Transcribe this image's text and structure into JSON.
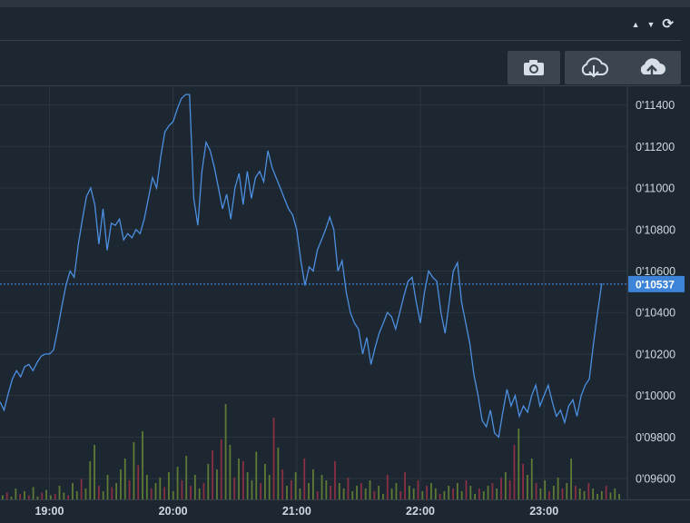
{
  "header": {
    "controls": [
      {
        "name": "collapse-up-icon",
        "glyph": "▲"
      },
      {
        "name": "collapse-down-icon",
        "glyph": "▼"
      },
      {
        "name": "refresh-icon",
        "glyph": "⟳"
      }
    ]
  },
  "toolbar": {
    "buttons": [
      {
        "name": "snapshot-camera-icon"
      },
      {
        "name": "cloud-download-icon"
      },
      {
        "name": "cloud-upload-icon"
      }
    ]
  },
  "colors": {
    "background": "#1c2731",
    "grid": "#2b3640",
    "line": "#4d8fe0",
    "last_price": "#3d84d8",
    "vol_up": "#5f7a35",
    "vol_down": "#8a3043",
    "axis_text": "#cfd8e0"
  },
  "chart_data": {
    "type": "line",
    "title": "",
    "xlabel": "",
    "ylabel": "",
    "x_ticks": [
      "19:00",
      "20:00",
      "21:00",
      "22:00",
      "23:00"
    ],
    "y_ticks": [
      "0'09600",
      "0'09800",
      "0'10000",
      "0'10200",
      "0'10400",
      "0'10600",
      "0'10800",
      "0'11000",
      "0'11200",
      "0'11400"
    ],
    "y_tick_values": [
      0.096,
      0.098,
      0.1,
      0.102,
      0.104,
      0.106,
      0.108,
      0.11,
      0.112,
      0.114
    ],
    "ylim": [
      0.095,
      0.1149
    ],
    "xlim": [
      "18:36",
      "23:40"
    ],
    "last_value_label": "0'10537",
    "last_value": 0.10537,
    "grid": true,
    "series": [
      {
        "values": [
          [
            "18:36",
            0.0997
          ],
          [
            "18:38",
            0.0993
          ],
          [
            "18:40",
            0.1001
          ],
          [
            "18:42",
            0.1008
          ],
          [
            "18:44",
            0.1012
          ],
          [
            "18:46",
            0.1009
          ],
          [
            "18:48",
            0.1014
          ],
          [
            "18:50",
            0.1015
          ],
          [
            "18:52",
            0.1012
          ],
          [
            "18:54",
            0.1016
          ],
          [
            "18:56",
            0.1019
          ],
          [
            "18:58",
            0.102
          ],
          [
            "19:00",
            0.102
          ],
          [
            "19:02",
            0.1022
          ],
          [
            "19:04",
            0.1032
          ],
          [
            "19:06",
            0.1043
          ],
          [
            "19:08",
            0.1053
          ],
          [
            "19:10",
            0.106
          ],
          [
            "19:12",
            0.1057
          ],
          [
            "19:14",
            0.1073
          ],
          [
            "19:16",
            0.1085
          ],
          [
            "19:18",
            0.1096
          ],
          [
            "19:20",
            0.11
          ],
          [
            "19:22",
            0.1092
          ],
          [
            "19:24",
            0.1073
          ],
          [
            "19:26",
            0.109
          ],
          [
            "19:28",
            0.107
          ],
          [
            "19:30",
            0.1083
          ],
          [
            "19:32",
            0.1082
          ],
          [
            "19:34",
            0.1085
          ],
          [
            "19:36",
            0.1075
          ],
          [
            "19:38",
            0.1078
          ],
          [
            "19:40",
            0.1076
          ],
          [
            "19:42",
            0.108
          ],
          [
            "19:44",
            0.1078
          ],
          [
            "19:46",
            0.1085
          ],
          [
            "19:48",
            0.1095
          ],
          [
            "19:50",
            0.1105
          ],
          [
            "19:52",
            0.11
          ],
          [
            "19:54",
            0.1115
          ],
          [
            "19:56",
            0.1127
          ],
          [
            "19:58",
            0.113
          ],
          [
            "20:00",
            0.1132
          ],
          [
            "20:02",
            0.1138
          ],
          [
            "20:04",
            0.1143
          ],
          [
            "20:06",
            0.1145
          ],
          [
            "20:08",
            0.1145
          ],
          [
            "20:10",
            0.1095
          ],
          [
            "20:12",
            0.1082
          ],
          [
            "20:14",
            0.1108
          ],
          [
            "20:16",
            0.1122
          ],
          [
            "20:18",
            0.1118
          ],
          [
            "20:20",
            0.111
          ],
          [
            "20:22",
            0.11
          ],
          [
            "20:24",
            0.109
          ],
          [
            "20:26",
            0.1097
          ],
          [
            "20:28",
            0.1085
          ],
          [
            "20:30",
            0.11
          ],
          [
            "20:32",
            0.1107
          ],
          [
            "20:34",
            0.1092
          ],
          [
            "20:36",
            0.1108
          ],
          [
            "20:38",
            0.1095
          ],
          [
            "20:40",
            0.1105
          ],
          [
            "20:42",
            0.1108
          ],
          [
            "20:44",
            0.1103
          ],
          [
            "20:46",
            0.1118
          ],
          [
            "20:48",
            0.111
          ],
          [
            "20:50",
            0.1105
          ],
          [
            "20:52",
            0.11
          ],
          [
            "20:54",
            0.1095
          ],
          [
            "20:56",
            0.109
          ],
          [
            "20:58",
            0.1087
          ],
          [
            "21:00",
            0.108
          ],
          [
            "21:02",
            0.1065
          ],
          [
            "21:04",
            0.1053
          ],
          [
            "21:06",
            0.1062
          ],
          [
            "21:08",
            0.106
          ],
          [
            "21:10",
            0.107
          ],
          [
            "21:12",
            0.1075
          ],
          [
            "21:14",
            0.108
          ],
          [
            "21:16",
            0.1086
          ],
          [
            "21:18",
            0.108
          ],
          [
            "21:20",
            0.106
          ],
          [
            "21:22",
            0.1065
          ],
          [
            "21:24",
            0.105
          ],
          [
            "21:26",
            0.104
          ],
          [
            "21:28",
            0.1035
          ],
          [
            "21:30",
            0.1032
          ],
          [
            "21:32",
            0.102
          ],
          [
            "21:34",
            0.1028
          ],
          [
            "21:36",
            0.1015
          ],
          [
            "21:38",
            0.1023
          ],
          [
            "21:40",
            0.103
          ],
          [
            "21:42",
            0.1035
          ],
          [
            "21:44",
            0.104
          ],
          [
            "21:46",
            0.1038
          ],
          [
            "21:48",
            0.1032
          ],
          [
            "21:50",
            0.104
          ],
          [
            "21:52",
            0.1048
          ],
          [
            "21:54",
            0.1055
          ],
          [
            "21:56",
            0.1057
          ],
          [
            "21:58",
            0.1045
          ],
          [
            "22:00",
            0.1035
          ],
          [
            "22:02",
            0.105
          ],
          [
            "22:04",
            0.106
          ],
          [
            "22:06",
            0.1057
          ],
          [
            "22:08",
            0.1055
          ],
          [
            "22:10",
            0.104
          ],
          [
            "22:12",
            0.103
          ],
          [
            "22:14",
            0.1045
          ],
          [
            "22:16",
            0.106
          ],
          [
            "22:18",
            0.1064
          ],
          [
            "22:20",
            0.1045
          ],
          [
            "22:22",
            0.1035
          ],
          [
            "22:24",
            0.1025
          ],
          [
            "22:26",
            0.101
          ],
          [
            "22:28",
            0.1
          ],
          [
            "22:30",
            0.0988
          ],
          [
            "22:32",
            0.0985
          ],
          [
            "22:34",
            0.0993
          ],
          [
            "22:36",
            0.0982
          ],
          [
            "22:38",
            0.098
          ],
          [
            "22:40",
            0.0992
          ],
          [
            "22:42",
            0.1003
          ],
          [
            "22:44",
            0.0995
          ],
          [
            "22:46",
            0.1
          ],
          [
            "22:48",
            0.099
          ],
          [
            "22:50",
            0.0995
          ],
          [
            "22:52",
            0.0992
          ],
          [
            "22:54",
            0.1
          ],
          [
            "22:56",
            0.1005
          ],
          [
            "22:58",
            0.0995
          ],
          [
            "23:00",
            0.1
          ],
          [
            "23:02",
            0.1005
          ],
          [
            "23:04",
            0.0997
          ],
          [
            "23:06",
            0.099
          ],
          [
            "23:08",
            0.0993
          ],
          [
            "23:10",
            0.0987
          ],
          [
            "23:12",
            0.0995
          ],
          [
            "23:14",
            0.0998
          ],
          [
            "23:16",
            0.099
          ],
          [
            "23:18",
            0.1
          ],
          [
            "23:20",
            0.1005
          ],
          [
            "23:22",
            0.1008
          ],
          [
            "23:24",
            0.1025
          ],
          [
            "23:26",
            0.104
          ],
          [
            "23:28",
            0.1054
          ]
        ]
      }
    ],
    "volume_unit_note": "",
    "volume": [
      [
        3,
        1
      ],
      [
        5,
        0
      ],
      [
        2,
        1
      ],
      [
        8,
        1
      ],
      [
        4,
        0
      ],
      [
        6,
        1
      ],
      [
        3,
        0
      ],
      [
        9,
        1
      ],
      [
        2,
        1
      ],
      [
        5,
        0
      ],
      [
        7,
        1
      ],
      [
        3,
        1
      ],
      [
        4,
        0
      ],
      [
        10,
        1
      ],
      [
        5,
        1
      ],
      [
        3,
        0
      ],
      [
        12,
        1
      ],
      [
        6,
        1
      ],
      [
        15,
        0
      ],
      [
        8,
        1
      ],
      [
        28,
        1
      ],
      [
        40,
        1
      ],
      [
        10,
        0
      ],
      [
        6,
        1
      ],
      [
        18,
        1
      ],
      [
        9,
        0
      ],
      [
        12,
        1
      ],
      [
        22,
        1
      ],
      [
        30,
        1
      ],
      [
        14,
        0
      ],
      [
        42,
        1
      ],
      [
        25,
        0
      ],
      [
        50,
        1
      ],
      [
        18,
        1
      ],
      [
        8,
        0
      ],
      [
        12,
        1
      ],
      [
        16,
        1
      ],
      [
        9,
        0
      ],
      [
        20,
        1
      ],
      [
        6,
        1
      ],
      [
        24,
        1
      ],
      [
        14,
        0
      ],
      [
        32,
        1
      ],
      [
        10,
        0
      ],
      [
        18,
        1
      ],
      [
        8,
        1
      ],
      [
        12,
        0
      ],
      [
        26,
        1
      ],
      [
        36,
        0
      ],
      [
        22,
        1
      ],
      [
        44,
        0
      ],
      [
        70,
        1
      ],
      [
        40,
        1
      ],
      [
        16,
        0
      ],
      [
        30,
        1
      ],
      [
        28,
        0
      ],
      [
        20,
        1
      ],
      [
        14,
        1
      ],
      [
        35,
        1
      ],
      [
        12,
        0
      ],
      [
        26,
        1
      ],
      [
        18,
        1
      ],
      [
        60,
        0
      ],
      [
        38,
        1
      ],
      [
        22,
        0
      ],
      [
        10,
        1
      ],
      [
        14,
        0
      ],
      [
        20,
        1
      ],
      [
        8,
        1
      ],
      [
        30,
        0
      ],
      [
        12,
        1
      ],
      [
        22,
        1
      ],
      [
        6,
        0
      ],
      [
        18,
        1
      ],
      [
        14,
        1
      ],
      [
        10,
        0
      ],
      [
        28,
        0
      ],
      [
        12,
        1
      ],
      [
        8,
        1
      ],
      [
        16,
        0
      ],
      [
        6,
        1
      ],
      [
        10,
        1
      ],
      [
        12,
        0
      ],
      [
        8,
        1
      ],
      [
        14,
        1
      ],
      [
        6,
        0
      ],
      [
        10,
        1
      ],
      [
        4,
        1
      ],
      [
        18,
        0
      ],
      [
        8,
        1
      ],
      [
        12,
        1
      ],
      [
        6,
        0
      ],
      [
        20,
        0
      ],
      [
        10,
        1
      ],
      [
        8,
        1
      ],
      [
        14,
        0
      ],
      [
        6,
        1
      ],
      [
        10,
        0
      ],
      [
        12,
        1
      ],
      [
        8,
        1
      ],
      [
        4,
        0
      ],
      [
        6,
        1
      ],
      [
        10,
        1
      ],
      [
        8,
        0
      ],
      [
        12,
        1
      ],
      [
        6,
        1
      ],
      [
        14,
        0
      ],
      [
        10,
        1
      ],
      [
        4,
        1
      ],
      [
        8,
        0
      ],
      [
        6,
        1
      ],
      [
        10,
        1
      ],
      [
        12,
        0
      ],
      [
        8,
        1
      ],
      [
        16,
        0
      ],
      [
        20,
        1
      ],
      [
        14,
        0
      ],
      [
        40,
        0
      ],
      [
        52,
        1
      ],
      [
        26,
        0
      ],
      [
        18,
        1
      ],
      [
        30,
        1
      ],
      [
        12,
        0
      ],
      [
        8,
        1
      ],
      [
        14,
        1
      ],
      [
        6,
        0
      ],
      [
        10,
        1
      ],
      [
        16,
        1
      ],
      [
        8,
        0
      ],
      [
        12,
        1
      ],
      [
        30,
        1
      ],
      [
        10,
        0
      ],
      [
        8,
        1
      ],
      [
        6,
        1
      ],
      [
        12,
        0
      ],
      [
        8,
        1
      ],
      [
        4,
        1
      ],
      [
        6,
        1
      ],
      [
        10,
        0
      ],
      [
        5,
        1
      ],
      [
        8,
        1
      ],
      [
        4,
        1
      ]
    ]
  }
}
